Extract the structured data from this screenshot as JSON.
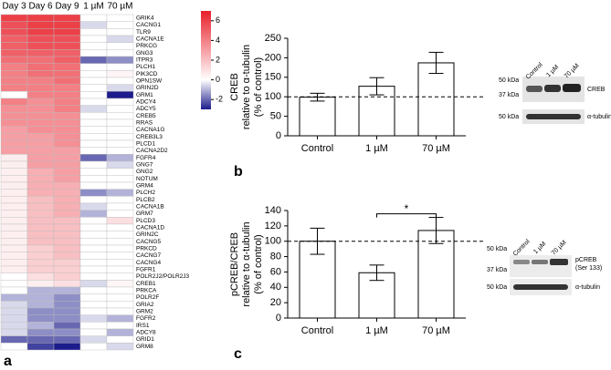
{
  "chart_data": [
    {
      "type": "heatmap",
      "panel_label": "a",
      "x": [
        "Day 3",
        "Day 6",
        "Day 9",
        "1 µM",
        "70 µM"
      ],
      "y": [
        "GRIK4",
        "CACNG1",
        "TLR9",
        "CACNA1E",
        "PRKCG",
        "GNG3",
        "ITPR3",
        "PLCH1",
        "PIK3CD",
        "OPN1SW",
        "GRIN2D",
        "GRM1",
        "ADCY4",
        "ADCY5",
        "CREB5",
        "RRAS",
        "CACNA1G",
        "CREB3L3",
        "PLCD1",
        "CACNA2D2",
        "FGFR4",
        "GNG7",
        "GNG2",
        "NOTUM",
        "GRM4",
        "PLCH2",
        "PLCB2",
        "CACNA1B",
        "GRM7",
        "PLCD3",
        "CACNA1D",
        "GRIN2C",
        "CACNG5",
        "PRKCD",
        "CACNG7",
        "CACNG4",
        "FGFR1",
        "POLR2J2/POLR2J3",
        "CREB1",
        "PRKCA",
        "POLR2F",
        "GRIA2",
        "GRM2",
        "FGFR2",
        "IRS1",
        "ADCY8",
        "GRID1",
        "GRM8"
      ],
      "values": [
        [
          6,
          6,
          6,
          0,
          0
        ],
        [
          5.5,
          6,
          6,
          -0.5,
          0
        ],
        [
          5.5,
          6,
          6,
          0,
          0
        ],
        [
          5,
          5.5,
          5.5,
          0,
          -0.5
        ],
        [
          5,
          5.5,
          5.5,
          0,
          0
        ],
        [
          5,
          5,
          5,
          0,
          0
        ],
        [
          4.5,
          4.5,
          5,
          -2,
          -1.5
        ],
        [
          4,
          4.5,
          4.5,
          0,
          0
        ],
        [
          4,
          4.5,
          4.5,
          0,
          0.3
        ],
        [
          4,
          4,
          4.5,
          0,
          0
        ],
        [
          4,
          4,
          4,
          0,
          -0.5
        ],
        [
          0,
          4,
          4,
          0,
          -3
        ],
        [
          4,
          3.5,
          4,
          0,
          0
        ],
        [
          3.5,
          3.5,
          4,
          -0.5,
          0
        ],
        [
          3.5,
          3.5,
          3.5,
          0,
          0
        ],
        [
          3.5,
          3.5,
          3.5,
          0,
          0
        ],
        [
          3,
          3.5,
          3.5,
          0,
          0
        ],
        [
          3,
          3,
          3.5,
          0,
          0
        ],
        [
          3,
          3,
          3.5,
          0,
          0
        ],
        [
          3,
          3,
          3,
          0,
          0
        ],
        [
          0.5,
          3,
          3,
          -2,
          -1
        ],
        [
          0.5,
          3,
          3,
          0,
          -0.5
        ],
        [
          0.5,
          2.5,
          3,
          0,
          0
        ],
        [
          0.5,
          2.5,
          3,
          0,
          0
        ],
        [
          0.5,
          2.5,
          2.5,
          0,
          0
        ],
        [
          0.5,
          2.5,
          2.5,
          -1.5,
          -1
        ],
        [
          0.5,
          2,
          2.5,
          0,
          0
        ],
        [
          0.5,
          2,
          2.5,
          -0.5,
          0
        ],
        [
          0.5,
          2,
          2.5,
          -1,
          0
        ],
        [
          0.5,
          2,
          2,
          0,
          1
        ],
        [
          0.5,
          2,
          2,
          0,
          0
        ],
        [
          0.5,
          2,
          2,
          0,
          0
        ],
        [
          0.5,
          2,
          2,
          0,
          0
        ],
        [
          0.5,
          1.5,
          2,
          0,
          0
        ],
        [
          0.5,
          1.5,
          2,
          0,
          0
        ],
        [
          0.5,
          1.5,
          1.5,
          0,
          0
        ],
        [
          0.5,
          1.5,
          1.5,
          0,
          0
        ],
        [
          0,
          1,
          1.5,
          0,
          0
        ],
        [
          0,
          0.5,
          1,
          -0.5,
          0.3
        ],
        [
          0,
          -1,
          -1,
          0,
          0
        ],
        [
          -1,
          -1,
          -1.5,
          0,
          0
        ],
        [
          -0.5,
          -1,
          -1.5,
          0,
          0
        ],
        [
          -0.5,
          -1.5,
          -1.5,
          0,
          0
        ],
        [
          -0.5,
          -1.5,
          -1.5,
          -0.5,
          -1
        ],
        [
          -0.5,
          -1,
          -2,
          0,
          0
        ],
        [
          -0.5,
          -1.5,
          -1.5,
          0,
          -1
        ],
        [
          -2,
          -2,
          -2,
          -0.5,
          0
        ],
        [
          0,
          -2.5,
          -3,
          0,
          -0.5
        ]
      ],
      "clim": [
        -3,
        7
      ],
      "cticks": [
        -2,
        0,
        2,
        4,
        6
      ],
      "colors": {
        "low": "#1c1c8c",
        "mid": "#ffffff",
        "high": "#e8202a"
      }
    },
    {
      "type": "bar",
      "panel_label": "b",
      "ylabel": [
        "CREB",
        "relative to α-tubulin",
        "(% of control)"
      ],
      "categories": [
        "Control",
        "1 µM",
        "70 µM"
      ],
      "values": [
        99,
        127,
        187
      ],
      "errors": [
        10,
        22,
        27
      ],
      "color": "#ffffff",
      "ylim": [
        0,
        250
      ],
      "yticks": [
        0,
        50,
        100,
        150,
        200,
        250
      ],
      "hline": 100
    },
    {
      "type": "bar",
      "panel_label": "c",
      "ylabel": [
        "pCREB/CREB",
        "relative to α-tubulin",
        "(% of control)"
      ],
      "categories": [
        "Control",
        "1 µM",
        "70 µM"
      ],
      "values": [
        100,
        59,
        114
      ],
      "errors": [
        17,
        10,
        17
      ],
      "color": "#ffffff",
      "ylim": [
        0,
        140
      ],
      "yticks": [
        0,
        20,
        40,
        60,
        80,
        100,
        120,
        140
      ],
      "hline": 100,
      "significance": {
        "from": "1 µM",
        "to": "70 µM",
        "label": "*"
      }
    }
  ],
  "blots": [
    {
      "lanes": [
        "Control",
        "1 µM",
        "70 µM"
      ],
      "markers": [
        "50 kDa",
        "37 kDa",
        "50 kDa"
      ],
      "bands": [
        [
          "CREB"
        ],
        [
          "α-tubulin"
        ]
      ]
    },
    {
      "lanes": [
        "Control",
        "1 µM",
        "70 µM"
      ],
      "markers": [
        "50 kDa",
        "37 kDa",
        "50 kDa"
      ],
      "bands": [
        [
          "pCREB",
          "(Ser 133)"
        ],
        [
          "α-tubulin"
        ]
      ]
    }
  ]
}
